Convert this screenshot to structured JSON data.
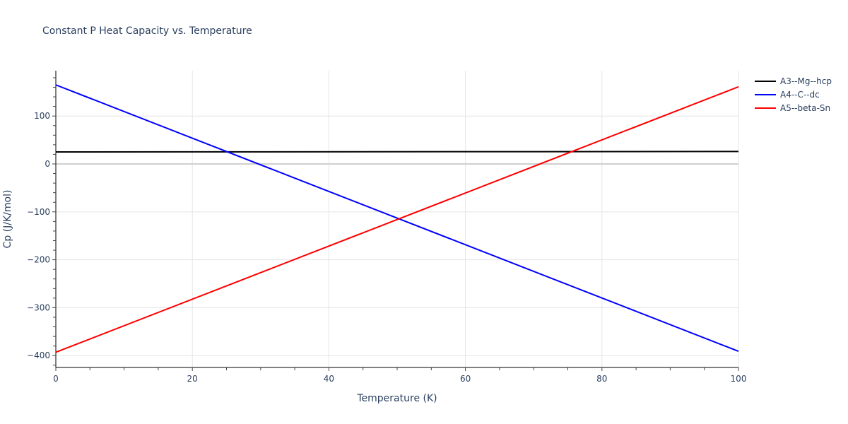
{
  "chart_data": {
    "type": "line",
    "title": "Constant P Heat Capacity vs. Temperature",
    "xlabel": "Temperature (K)",
    "ylabel": "Cp (J/K/mol)",
    "xlim": [
      0,
      100
    ],
    "ylim": [
      -425,
      195
    ],
    "x_ticks": [
      0,
      20,
      40,
      60,
      80,
      100
    ],
    "y_ticks": [
      -400,
      -300,
      -200,
      -100,
      0,
      100
    ],
    "y_tick_labels": [
      "−400",
      "−300",
      "−200",
      "−100",
      "0",
      "100"
    ],
    "grid": true,
    "legend_position": "right",
    "x": [
      0,
      100
    ],
    "series": [
      {
        "name": "A3--Mg--hcp",
        "color": "#000000",
        "values": [
          25,
          26
        ]
      },
      {
        "name": "A4--C--dc",
        "color": "#0000ff",
        "values": [
          165,
          -391
        ]
      },
      {
        "name": "A5--beta-Sn",
        "color": "#ff0000",
        "values": [
          -393,
          161
        ]
      }
    ]
  },
  "legend": {
    "items": [
      {
        "label": "A3--Mg--hcp",
        "color": "#000000"
      },
      {
        "label": "A4--C--dc",
        "color": "#0000ff"
      },
      {
        "label": "A5--beta-Sn",
        "color": "#ff0000"
      }
    ]
  }
}
